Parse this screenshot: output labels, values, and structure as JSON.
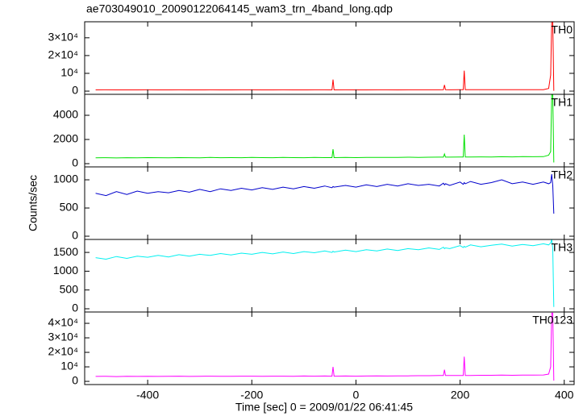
{
  "title": "ae703049010_20090122064145_wam3_trn_4band_long.qdp",
  "xlabel": "Time [sec] 0 = 2009/01/22 06:41:45",
  "ylabel": "Counts/sec",
  "chart_data": [
    {
      "type": "line",
      "label": "TH0",
      "color": "#ff0000",
      "xlim": [
        -521,
        419
      ],
      "xticks": [
        -400,
        -200,
        0,
        200,
        400
      ],
      "ylim": [
        -1800,
        39000
      ],
      "yticks": [
        0,
        {
          "value": 10000,
          "label": "10⁴"
        },
        {
          "value": 20000,
          "label": "2×10⁴"
        },
        {
          "value": 30000,
          "label": "3×10⁴"
        }
      ],
      "x": [
        -500,
        -480,
        -460,
        -440,
        -420,
        -400,
        -380,
        -360,
        -340,
        -320,
        -300,
        -280,
        -260,
        -240,
        -220,
        -200,
        -180,
        -160,
        -140,
        -120,
        -100,
        -80,
        -60,
        -46,
        -44,
        -42,
        -20,
        0,
        20,
        40,
        60,
        80,
        100,
        120,
        140,
        160,
        168,
        170,
        172,
        180,
        200,
        206,
        208,
        210,
        220,
        240,
        260,
        280,
        300,
        320,
        340,
        360,
        370,
        374,
        376,
        378,
        380
      ],
      "values": [
        700,
        720,
        690,
        710,
        700,
        730,
        700,
        690,
        720,
        710,
        700,
        740,
        710,
        700,
        720,
        730,
        710,
        700,
        720,
        710,
        700,
        730,
        720,
        700,
        6500,
        700,
        720,
        710,
        700,
        730,
        720,
        710,
        730,
        720,
        740,
        760,
        800,
        3500,
        800,
        760,
        780,
        800,
        11500,
        800,
        780,
        790,
        800,
        810,
        790,
        820,
        800,
        830,
        1500,
        9000,
        39000,
        39000,
        200
      ]
    },
    {
      "type": "line",
      "label": "TH1",
      "color": "#00e000",
      "xlim": [
        -521,
        419
      ],
      "xticks": [
        -400,
        -200,
        0,
        200,
        400
      ],
      "ylim": [
        -267,
        5733
      ],
      "yticks": [
        0,
        2000,
        4000
      ],
      "x": [
        -500,
        -480,
        -460,
        -440,
        -420,
        -400,
        -380,
        -360,
        -340,
        -320,
        -300,
        -280,
        -260,
        -240,
        -220,
        -200,
        -180,
        -160,
        -140,
        -120,
        -100,
        -80,
        -60,
        -46,
        -44,
        -42,
        -20,
        0,
        20,
        40,
        60,
        80,
        100,
        120,
        140,
        160,
        168,
        170,
        172,
        180,
        200,
        206,
        208,
        210,
        220,
        240,
        260,
        280,
        300,
        320,
        340,
        360,
        370,
        374,
        376,
        378,
        380
      ],
      "values": [
        480,
        490,
        470,
        490,
        480,
        500,
        490,
        480,
        500,
        490,
        480,
        510,
        490,
        500,
        490,
        510,
        500,
        490,
        510,
        500,
        490,
        510,
        500,
        500,
        1200,
        500,
        510,
        500,
        520,
        510,
        520,
        510,
        530,
        520,
        530,
        540,
        540,
        800,
        540,
        540,
        550,
        550,
        2400,
        550,
        550,
        560,
        550,
        570,
        560,
        580,
        570,
        580,
        700,
        1000,
        5700,
        5700,
        100
      ]
    },
    {
      "type": "line",
      "label": "TH2",
      "color": "#0000cc",
      "xlim": [
        -521,
        419
      ],
      "xticks": [
        -400,
        -200,
        0,
        200,
        400
      ],
      "ylim": [
        -57,
        1229
      ],
      "yticks": [
        0,
        500,
        1000
      ],
      "x": [
        -500,
        -480,
        -460,
        -440,
        -420,
        -400,
        -380,
        -360,
        -340,
        -320,
        -300,
        -280,
        -260,
        -240,
        -220,
        -200,
        -180,
        -160,
        -140,
        -120,
        -100,
        -80,
        -60,
        -46,
        -44,
        -42,
        -20,
        0,
        20,
        40,
        60,
        80,
        100,
        120,
        140,
        160,
        168,
        170,
        172,
        180,
        200,
        206,
        208,
        210,
        220,
        240,
        260,
        280,
        300,
        320,
        340,
        360,
        370,
        374,
        376,
        378,
        380
      ],
      "values": [
        760,
        720,
        790,
        740,
        800,
        760,
        790,
        770,
        810,
        780,
        830,
        790,
        840,
        810,
        850,
        820,
        860,
        830,
        870,
        840,
        880,
        850,
        890,
        860,
        880,
        870,
        900,
        870,
        910,
        880,
        920,
        890,
        930,
        900,
        920,
        890,
        940,
        910,
        930,
        900,
        960,
        920,
        950,
        930,
        970,
        920,
        950,
        1000,
        930,
        960,
        920,
        960,
        930,
        950,
        1100,
        900,
        400
      ]
    },
    {
      "type": "line",
      "label": "TH3",
      "color": "#00f0f0",
      "xlim": [
        -521,
        419
      ],
      "xticks": [
        -400,
        -200,
        0,
        200,
        400
      ],
      "ylim": [
        -86,
        1845
      ],
      "yticks": [
        0,
        500,
        1000,
        1500
      ],
      "x": [
        -500,
        -480,
        -460,
        -440,
        -420,
        -400,
        -380,
        -360,
        -340,
        -320,
        -300,
        -280,
        -260,
        -240,
        -220,
        -200,
        -180,
        -160,
        -140,
        -120,
        -100,
        -80,
        -60,
        -46,
        -44,
        -42,
        -20,
        0,
        20,
        40,
        60,
        80,
        100,
        120,
        140,
        160,
        168,
        170,
        172,
        180,
        200,
        206,
        208,
        210,
        220,
        240,
        260,
        280,
        300,
        320,
        340,
        360,
        370,
        374,
        376,
        378,
        380
      ],
      "values": [
        1360,
        1320,
        1390,
        1340,
        1400,
        1370,
        1420,
        1380,
        1440,
        1400,
        1450,
        1420,
        1470,
        1430,
        1480,
        1450,
        1500,
        1460,
        1510,
        1470,
        1520,
        1490,
        1540,
        1500,
        1530,
        1510,
        1560,
        1520,
        1570,
        1540,
        1590,
        1550,
        1600,
        1570,
        1620,
        1580,
        1640,
        1600,
        1620,
        1600,
        1680,
        1630,
        1660,
        1640,
        1700,
        1650,
        1690,
        1720,
        1670,
        1710,
        1680,
        1730,
        1700,
        1750,
        1840,
        1600,
        50
      ]
    },
    {
      "type": "line",
      "label": "TH0123",
      "color": "#ff00ff",
      "xlim": [
        -521,
        419
      ],
      "xticks": [
        -400,
        -200,
        0,
        200,
        400
      ],
      "ylim": [
        -2200,
        47800
      ],
      "yticks": [
        0,
        {
          "value": 10000,
          "label": "10⁴"
        },
        {
          "value": 20000,
          "label": "2×10⁴"
        },
        {
          "value": 30000,
          "label": "3×10⁴"
        },
        {
          "value": 40000,
          "label": "4×10⁴"
        }
      ],
      "x": [
        -500,
        -480,
        -460,
        -440,
        -420,
        -400,
        -380,
        -360,
        -340,
        -320,
        -300,
        -280,
        -260,
        -240,
        -220,
        -200,
        -180,
        -160,
        -140,
        -120,
        -100,
        -80,
        -60,
        -46,
        -44,
        -42,
        -20,
        0,
        20,
        40,
        60,
        80,
        100,
        120,
        140,
        160,
        168,
        170,
        172,
        180,
        200,
        206,
        208,
        210,
        220,
        240,
        260,
        280,
        300,
        320,
        340,
        360,
        370,
        374,
        376,
        378,
        380
      ],
      "values": [
        3400,
        3500,
        3300,
        3500,
        3400,
        3500,
        3400,
        3500,
        3600,
        3400,
        3500,
        3600,
        3500,
        3500,
        3600,
        3600,
        3500,
        3600,
        3600,
        3500,
        3700,
        3600,
        3700,
        3600,
        10000,
        3600,
        3700,
        3600,
        3700,
        3800,
        3700,
        3800,
        3800,
        3900,
        3900,
        4000,
        4000,
        8000,
        4000,
        4000,
        4100,
        4100,
        17000,
        4100,
        4100,
        4200,
        4200,
        4300,
        4200,
        4300,
        4300,
        4400,
        5000,
        10000,
        47000,
        47000,
        500
      ]
    }
  ]
}
